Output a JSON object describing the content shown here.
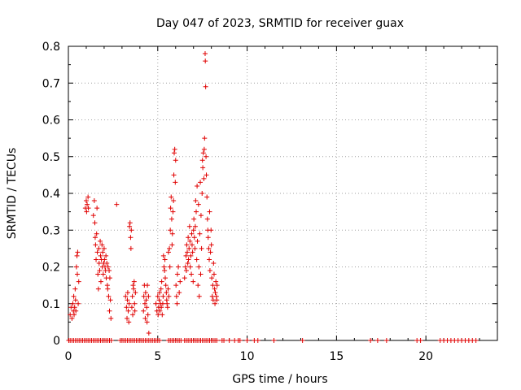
{
  "chart_data": {
    "type": "scatter",
    "title": "Day 047 of 2023, SRMTID for receiver guax",
    "xlabel": "GPS time / hours",
    "ylabel": "SRMTID / TECUs",
    "xlim": [
      0,
      24
    ],
    "ylim": [
      0,
      0.8
    ],
    "xticks": [
      0,
      5,
      10,
      15,
      20
    ],
    "yticks": [
      0,
      0.1,
      0.2,
      0.3,
      0.4,
      0.5,
      0.6,
      0.7,
      0.8
    ],
    "xtick_labels": [
      "0",
      "5",
      "10",
      "15",
      "20"
    ],
    "ytick_labels": [
      "0",
      "0.1",
      "0.2",
      "0.3",
      "0.4",
      "0.5",
      "0.6",
      "0.7",
      "0.8"
    ],
    "grid": true,
    "marker": "+",
    "color": "#e00000",
    "series": [
      {
        "name": "SRMTID",
        "points": [
          [
            0.1,
            0.07
          ],
          [
            0.15,
            0.09
          ],
          [
            0.2,
            0.06
          ],
          [
            0.25,
            0.1
          ],
          [
            0.28,
            0.08
          ],
          [
            0.3,
            0.12
          ],
          [
            0.32,
            0.07
          ],
          [
            0.35,
            0.09
          ],
          [
            0.38,
            0.14
          ],
          [
            0.4,
            0.11
          ],
          [
            0.42,
            0.08
          ],
          [
            0.45,
            0.2
          ],
          [
            0.48,
            0.23
          ],
          [
            0.5,
            0.18
          ],
          [
            0.52,
            0.24
          ],
          [
            0.55,
            0.1
          ],
          [
            0.58,
            0.16
          ],
          [
            0.95,
            0.36
          ],
          [
            1.0,
            0.38
          ],
          [
            1.02,
            0.35
          ],
          [
            1.05,
            0.37
          ],
          [
            1.1,
            0.39
          ],
          [
            1.12,
            0.36
          ],
          [
            1.4,
            0.34
          ],
          [
            1.45,
            0.38
          ],
          [
            1.48,
            0.32
          ],
          [
            1.5,
            0.28
          ],
          [
            1.52,
            0.26
          ],
          [
            1.55,
            0.22
          ],
          [
            1.58,
            0.29
          ],
          [
            1.6,
            0.36
          ],
          [
            1.62,
            0.24
          ],
          [
            1.65,
            0.18
          ],
          [
            1.68,
            0.14
          ],
          [
            1.7,
            0.25
          ],
          [
            1.72,
            0.21
          ],
          [
            1.75,
            0.19
          ],
          [
            1.78,
            0.27
          ],
          [
            1.8,
            0.23
          ],
          [
            1.82,
            0.16
          ],
          [
            1.85,
            0.22
          ],
          [
            1.88,
            0.26
          ],
          [
            1.9,
            0.2
          ],
          [
            1.92,
            0.24
          ],
          [
            1.95,
            0.18
          ],
          [
            1.98,
            0.21
          ],
          [
            2.0,
            0.25
          ],
          [
            2.02,
            0.22
          ],
          [
            2.05,
            0.2
          ],
          [
            2.08,
            0.19
          ],
          [
            2.1,
            0.23
          ],
          [
            2.12,
            0.17
          ],
          [
            2.15,
            0.21
          ],
          [
            2.18,
            0.15
          ],
          [
            2.2,
            0.14
          ],
          [
            2.22,
            0.2
          ],
          [
            2.25,
            0.12
          ],
          [
            2.28,
            0.19
          ],
          [
            2.3,
            0.08
          ],
          [
            2.32,
            0.17
          ],
          [
            2.35,
            0.11
          ],
          [
            2.38,
            0.06
          ],
          [
            2.7,
            0.37
          ],
          [
            3.2,
            0.12
          ],
          [
            3.25,
            0.09
          ],
          [
            3.28,
            0.06
          ],
          [
            3.3,
            0.11
          ],
          [
            3.32,
            0.13
          ],
          [
            3.35,
            0.08
          ],
          [
            3.38,
            0.05
          ],
          [
            3.4,
            0.1
          ],
          [
            3.42,
            0.31
          ],
          [
            3.45,
            0.32
          ],
          [
            3.48,
            0.28
          ],
          [
            3.5,
            0.25
          ],
          [
            3.52,
            0.3
          ],
          [
            3.55,
            0.09
          ],
          [
            3.58,
            0.12
          ],
          [
            3.6,
            0.07
          ],
          [
            3.62,
            0.15
          ],
          [
            3.65,
            0.14
          ],
          [
            3.68,
            0.16
          ],
          [
            3.7,
            0.1
          ],
          [
            3.72,
            0.08
          ],
          [
            3.75,
            0.13
          ],
          [
            4.2,
            0.08
          ],
          [
            4.22,
            0.12
          ],
          [
            4.25,
            0.15
          ],
          [
            4.28,
            0.1
          ],
          [
            4.3,
            0.06
          ],
          [
            4.32,
            0.13
          ],
          [
            4.35,
            0.11
          ],
          [
            4.38,
            0.09
          ],
          [
            4.4,
            0.05
          ],
          [
            4.42,
            0.15
          ],
          [
            4.45,
            0.07
          ],
          [
            4.48,
            0.12
          ],
          [
            4.5,
            0.02
          ],
          [
            4.9,
            0.1
          ],
          [
            4.95,
            0.08
          ],
          [
            5.0,
            0.12
          ],
          [
            5.02,
            0.07
          ],
          [
            5.05,
            0.09
          ],
          [
            5.08,
            0.11
          ],
          [
            5.1,
            0.13
          ],
          [
            5.12,
            0.08
          ],
          [
            5.15,
            0.1
          ],
          [
            5.18,
            0.14
          ],
          [
            5.2,
            0.09
          ],
          [
            5.22,
            0.16
          ],
          [
            5.25,
            0.07
          ],
          [
            5.28,
            0.1
          ],
          [
            5.3,
            0.12
          ],
          [
            5.32,
            0.23
          ],
          [
            5.35,
            0.2
          ],
          [
            5.38,
            0.19
          ],
          [
            5.4,
            0.22
          ],
          [
            5.42,
            0.17
          ],
          [
            5.45,
            0.15
          ],
          [
            5.48,
            0.13
          ],
          [
            5.5,
            0.11
          ],
          [
            5.52,
            0.1
          ],
          [
            5.55,
            0.09
          ],
          [
            5.58,
            0.14
          ],
          [
            5.6,
            0.24
          ],
          [
            5.62,
            0.12
          ],
          [
            5.65,
            0.25
          ],
          [
            5.68,
            0.2
          ],
          [
            5.7,
            0.3
          ],
          [
            5.72,
            0.36
          ],
          [
            5.75,
            0.39
          ],
          [
            5.78,
            0.33
          ],
          [
            5.8,
            0.26
          ],
          [
            5.82,
            0.29
          ],
          [
            5.85,
            0.35
          ],
          [
            5.88,
            0.38
          ],
          [
            5.9,
            0.45
          ],
          [
            5.92,
            0.51
          ],
          [
            5.95,
            0.52
          ],
          [
            5.98,
            0.43
          ],
          [
            6.0,
            0.49
          ],
          [
            6.02,
            0.15
          ],
          [
            6.05,
            0.12
          ],
          [
            6.08,
            0.1
          ],
          [
            6.1,
            0.18
          ],
          [
            6.15,
            0.2
          ],
          [
            6.2,
            0.13
          ],
          [
            6.25,
            0.16
          ],
          [
            6.5,
            0.17
          ],
          [
            6.55,
            0.2
          ],
          [
            6.58,
            0.23
          ],
          [
            6.6,
            0.19
          ],
          [
            6.62,
            0.26
          ],
          [
            6.65,
            0.24
          ],
          [
            6.68,
            0.21
          ],
          [
            6.7,
            0.28
          ],
          [
            6.72,
            0.22
          ],
          [
            6.75,
            0.25
          ],
          [
            6.78,
            0.31
          ],
          [
            6.8,
            0.27
          ],
          [
            6.82,
            0.2
          ],
          [
            6.85,
            0.23
          ],
          [
            6.88,
            0.18
          ],
          [
            6.9,
            0.29
          ],
          [
            6.92,
            0.26
          ],
          [
            6.95,
            0.24
          ],
          [
            6.98,
            0.16
          ],
          [
            7.0,
            0.3
          ],
          [
            7.02,
            0.33
          ],
          [
            7.05,
            0.28
          ],
          [
            7.08,
            0.25
          ],
          [
            7.1,
            0.31
          ],
          [
            7.12,
            0.38
          ],
          [
            7.15,
            0.35
          ],
          [
            7.18,
            0.22
          ],
          [
            7.2,
            0.42
          ],
          [
            7.22,
            0.27
          ],
          [
            7.25,
            0.15
          ],
          [
            7.28,
            0.37
          ],
          [
            7.3,
            0.2
          ],
          [
            7.32,
            0.12
          ],
          [
            7.35,
            0.29
          ],
          [
            7.38,
            0.43
          ],
          [
            7.4,
            0.18
          ],
          [
            7.42,
            0.34
          ],
          [
            7.45,
            0.25
          ],
          [
            7.48,
            0.4
          ],
          [
            7.5,
            0.49
          ],
          [
            7.52,
            0.47
          ],
          [
            7.55,
            0.51
          ],
          [
            7.58,
            0.44
          ],
          [
            7.6,
            0.52
          ],
          [
            7.62,
            0.55
          ],
          [
            7.65,
            0.78
          ],
          [
            7.66,
            0.76
          ],
          [
            7.68,
            0.69
          ],
          [
            7.7,
            0.5
          ],
          [
            7.72,
            0.45
          ],
          [
            7.75,
            0.39
          ],
          [
            7.78,
            0.33
          ],
          [
            7.8,
            0.3
          ],
          [
            7.82,
            0.28
          ],
          [
            7.85,
            0.25
          ],
          [
            7.88,
            0.22
          ],
          [
            7.9,
            0.35
          ],
          [
            7.92,
            0.19
          ],
          [
            7.95,
            0.24
          ],
          [
            7.98,
            0.3
          ],
          [
            8.0,
            0.26
          ],
          [
            8.02,
            0.17
          ],
          [
            8.05,
            0.12
          ],
          [
            8.08,
            0.15
          ],
          [
            8.1,
            0.11
          ],
          [
            8.12,
            0.21
          ],
          [
            8.15,
            0.18
          ],
          [
            8.18,
            0.14
          ],
          [
            8.2,
            0.1
          ],
          [
            8.22,
            0.13
          ],
          [
            8.25,
            0.16
          ],
          [
            8.28,
            0.12
          ],
          [
            8.3,
            0.11
          ],
          [
            8.32,
            0.15
          ],
          [
            0.02,
            0.0
          ],
          [
            0.1,
            0.0
          ],
          [
            0.2,
            0.0
          ],
          [
            0.3,
            0.0
          ],
          [
            0.4,
            0.0
          ],
          [
            0.5,
            0.0
          ],
          [
            0.6,
            0.0
          ],
          [
            0.7,
            0.0
          ],
          [
            0.8,
            0.0
          ],
          [
            0.9,
            0.0
          ],
          [
            1.0,
            0.0
          ],
          [
            1.1,
            0.0
          ],
          [
            1.2,
            0.0
          ],
          [
            1.3,
            0.0
          ],
          [
            1.4,
            0.0
          ],
          [
            1.5,
            0.0
          ],
          [
            1.6,
            0.0
          ],
          [
            1.7,
            0.0
          ],
          [
            1.8,
            0.0
          ],
          [
            1.9,
            0.0
          ],
          [
            2.0,
            0.0
          ],
          [
            2.1,
            0.0
          ],
          [
            2.2,
            0.0
          ],
          [
            2.3,
            0.0
          ],
          [
            2.4,
            0.0
          ],
          [
            2.9,
            0.0
          ],
          [
            3.0,
            0.0
          ],
          [
            3.1,
            0.0
          ],
          [
            3.2,
            0.0
          ],
          [
            3.3,
            0.0
          ],
          [
            3.4,
            0.0
          ],
          [
            3.5,
            0.0
          ],
          [
            3.6,
            0.0
          ],
          [
            3.7,
            0.0
          ],
          [
            3.8,
            0.0
          ],
          [
            3.9,
            0.0
          ],
          [
            4.0,
            0.0
          ],
          [
            4.1,
            0.0
          ],
          [
            4.2,
            0.0
          ],
          [
            4.3,
            0.0
          ],
          [
            4.4,
            0.0
          ],
          [
            4.5,
            0.0
          ],
          [
            4.6,
            0.0
          ],
          [
            4.7,
            0.0
          ],
          [
            4.8,
            0.0
          ],
          [
            4.9,
            0.0
          ],
          [
            5.0,
            0.0
          ],
          [
            5.1,
            0.0
          ],
          [
            5.6,
            0.0
          ],
          [
            5.7,
            0.0
          ],
          [
            5.8,
            0.0
          ],
          [
            5.9,
            0.0
          ],
          [
            6.0,
            0.0
          ],
          [
            6.1,
            0.0
          ],
          [
            6.2,
            0.0
          ],
          [
            6.3,
            0.0
          ],
          [
            6.5,
            0.0
          ],
          [
            6.6,
            0.0
          ],
          [
            6.7,
            0.0
          ],
          [
            6.8,
            0.0
          ],
          [
            6.9,
            0.0
          ],
          [
            7.0,
            0.0
          ],
          [
            7.1,
            0.0
          ],
          [
            7.2,
            0.0
          ],
          [
            7.3,
            0.0
          ],
          [
            7.4,
            0.0
          ],
          [
            7.5,
            0.0
          ],
          [
            7.6,
            0.0
          ],
          [
            7.7,
            0.0
          ],
          [
            7.8,
            0.0
          ],
          [
            7.9,
            0.0
          ],
          [
            8.0,
            0.0
          ],
          [
            8.1,
            0.0
          ],
          [
            8.2,
            0.0
          ],
          [
            8.3,
            0.0
          ],
          [
            8.6,
            0.0
          ],
          [
            8.7,
            0.0
          ],
          [
            9.0,
            0.0
          ],
          [
            9.3,
            0.0
          ],
          [
            9.5,
            0.0
          ],
          [
            9.6,
            0.0
          ],
          [
            10.0,
            0.0
          ],
          [
            10.4,
            0.0
          ],
          [
            10.6,
            0.0
          ],
          [
            11.5,
            0.0
          ],
          [
            13.1,
            0.0
          ],
          [
            16.9,
            0.0
          ],
          [
            17.3,
            0.0
          ],
          [
            17.8,
            0.0
          ],
          [
            19.5,
            0.0
          ],
          [
            19.7,
            0.0
          ],
          [
            20.8,
            0.0
          ],
          [
            21.0,
            0.0
          ],
          [
            21.2,
            0.0
          ],
          [
            21.4,
            0.0
          ],
          [
            21.6,
            0.0
          ],
          [
            21.8,
            0.0
          ],
          [
            22.0,
            0.0
          ],
          [
            22.2,
            0.0
          ],
          [
            22.4,
            0.0
          ],
          [
            22.6,
            0.0
          ],
          [
            22.8,
            0.0
          ]
        ]
      }
    ]
  }
}
